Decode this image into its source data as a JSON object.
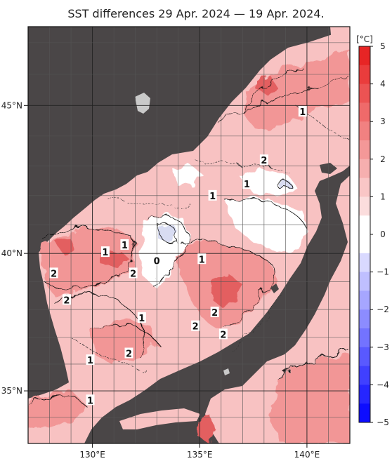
{
  "title": "SST differences 29 Apr. 2024 — 19 Apr. 2024.",
  "colors": {
    "land": "#4a4647",
    "sea_base": "#f8c2c2",
    "sea_warm": "#f29696",
    "sea_hot": "#e35f60",
    "sea_neutral": "#ffffff",
    "sea_cool": "#d8dcf2",
    "grid": "#222222"
  },
  "axes": {
    "lon_ticks": [
      {
        "value": 130,
        "label": "130°E"
      },
      {
        "value": 135,
        "label": "135°E"
      },
      {
        "value": 140,
        "label": "140°E"
      }
    ],
    "lat_ticks": [
      {
        "value": 45,
        "label": "45°N"
      },
      {
        "value": 40,
        "label": "40°N"
      },
      {
        "value": 35,
        "label": "35°N"
      }
    ],
    "lon_range": [
      127,
      142
    ],
    "lat_range": [
      33,
      47.5
    ]
  },
  "colorbar": {
    "unit": "[°C]",
    "labels": [
      "5",
      "4",
      "3",
      "2",
      "1",
      "0",
      "−1",
      "−2",
      "−3",
      "−4",
      "−5"
    ],
    "min": -5,
    "max": 5,
    "steps": 20
  },
  "contour_labels": [
    {
      "text": "1",
      "lon": 139.8,
      "lat": 44.8
    },
    {
      "text": "2",
      "lon": 138.0,
      "lat": 43.2
    },
    {
      "text": "1",
      "lon": 137.2,
      "lat": 42.4
    },
    {
      "text": "1",
      "lon": 135.6,
      "lat": 42.0
    },
    {
      "text": "1",
      "lon": 131.5,
      "lat": 40.3
    },
    {
      "text": "1",
      "lon": 130.6,
      "lat": 40.05
    },
    {
      "text": "0",
      "lon": 133.0,
      "lat": 39.75
    },
    {
      "text": "1",
      "lon": 135.1,
      "lat": 39.8
    },
    {
      "text": "2",
      "lon": 128.2,
      "lat": 39.3
    },
    {
      "text": "2",
      "lon": 131.9,
      "lat": 39.3
    },
    {
      "text": "2",
      "lon": 128.8,
      "lat": 38.35
    },
    {
      "text": "1",
      "lon": 132.3,
      "lat": 37.7
    },
    {
      "text": "2",
      "lon": 135.7,
      "lat": 37.9
    },
    {
      "text": "2",
      "lon": 134.8,
      "lat": 37.4
    },
    {
      "text": "2",
      "lon": 136.1,
      "lat": 37.1
    },
    {
      "text": "2",
      "lon": 131.7,
      "lat": 36.4
    },
    {
      "text": "1",
      "lon": 129.9,
      "lat": 36.15
    },
    {
      "text": "1",
      "lon": 129.9,
      "lat": 34.65
    }
  ]
}
